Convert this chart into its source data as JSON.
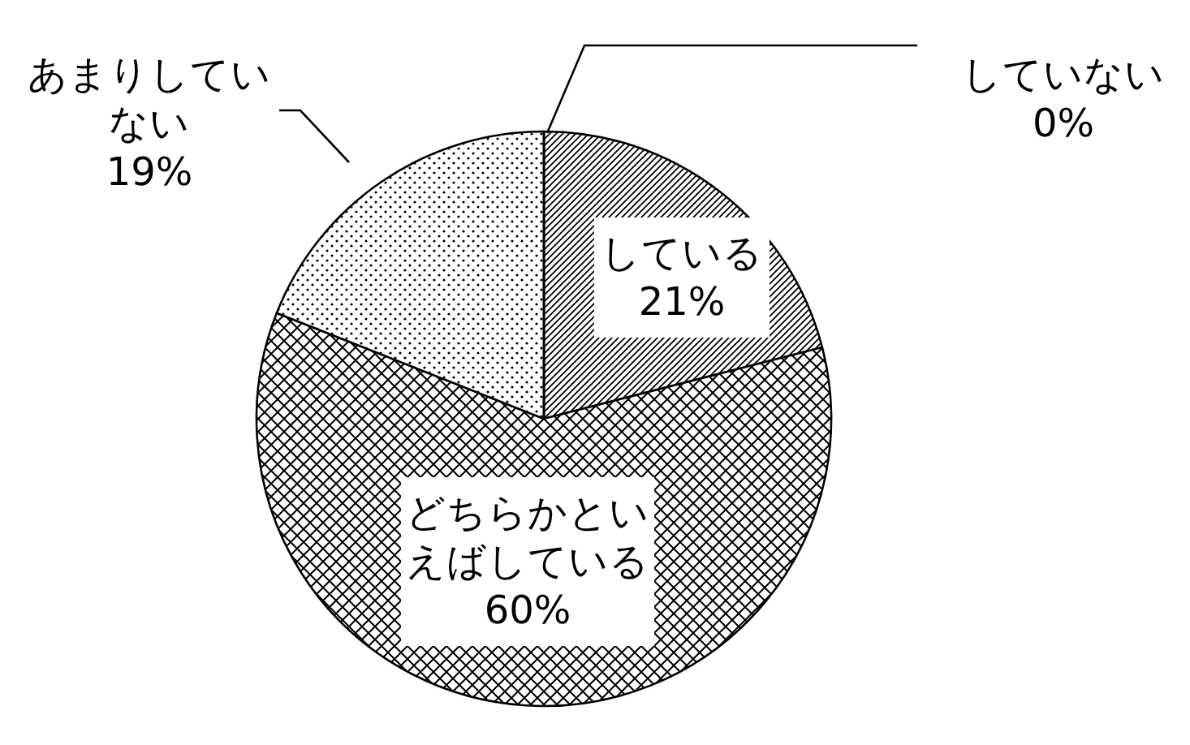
{
  "chart_data": {
    "type": "pie",
    "categories": [
      "している",
      "どちらかといえばしている",
      "あまりしていない",
      "していない"
    ],
    "values": [
      21,
      60,
      19,
      0
    ],
    "colors": [
      "#000000",
      "#000000",
      "#000000",
      "#000000"
    ],
    "value_labels": [
      "21%",
      "60%",
      "19%",
      "0%"
    ]
  }
}
